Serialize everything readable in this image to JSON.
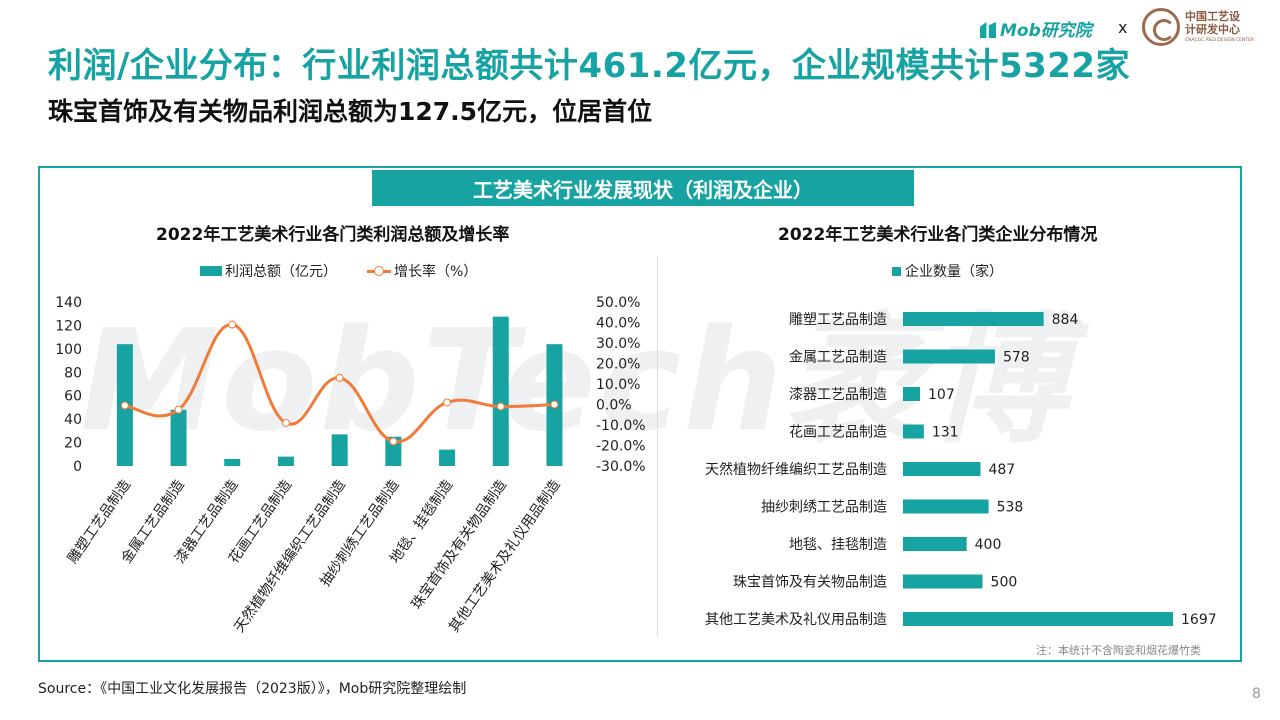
{
  "page": {
    "title": "利润/企业分布：行业利润总额共计461.2亿元，企业规模共计5322家",
    "subtitle": "珠宝首饰及有关物品利润总额为127.5亿元，位居首位",
    "panel_header": "工艺美术行业发展现状（利润及企业）",
    "note": "注：本统计不含陶瓷和烟花爆竹类",
    "source": "Source：《中国工业文化发展报告（2023版）》，Mob研究院整理绘制",
    "page_number": "8",
    "watermark": "MobTech袤博"
  },
  "logo": {
    "mob_text": "Mob研究院",
    "separator": "x",
    "partner_cn": "中国工艺设计研发中心",
    "partner_en": "CNACGC R&D DESIGN CENTER"
  },
  "colors": {
    "accent": "#18a3a3",
    "line": "#f07c3c"
  },
  "chart_data": [
    {
      "type": "bar+line",
      "title": "2022年工艺美术行业各门类利润总额及增长率",
      "categories": [
        "雕塑工艺品制造",
        "金属工艺品制造",
        "漆器工艺品制造",
        "花画工艺品制造",
        "天然植物纤维编织工艺品制造",
        "抽纱刺绣工艺品制造",
        "地毯、挂毯制造",
        "珠宝首饰及有关物品制造",
        "其他工艺美术及礼仪用品制造"
      ],
      "series": [
        {
          "name": "利润总额（亿元）",
          "kind": "bar",
          "axis": "left",
          "values": [
            104,
            48,
            6,
            8,
            27,
            25,
            14,
            127.5,
            104
          ]
        },
        {
          "name": "增长率（%）",
          "kind": "line",
          "axis": "right",
          "values": [
            -0.5,
            -2.5,
            39,
            -9,
            13,
            -18,
            1,
            -1,
            0
          ]
        }
      ],
      "ylim_left": [
        0,
        140
      ],
      "yticks_left": [
        "0",
        "20",
        "40",
        "60",
        "80",
        "100",
        "120",
        "140"
      ],
      "ylim_right": [
        -30,
        50
      ],
      "yticks_right": [
        "-30.0%",
        "-20.0%",
        "-10.0%",
        "0.0%",
        "10.0%",
        "20.0%",
        "30.0%",
        "40.0%",
        "50.0%"
      ],
      "legend": "top",
      "grid": false
    },
    {
      "type": "bar",
      "orientation": "horizontal",
      "title": "2022年工艺美术行业各门类企业分布情况",
      "categories": [
        "雕塑工艺品制造",
        "金属工艺品制造",
        "漆器工艺品制造",
        "花画工艺品制造",
        "天然植物纤维编织工艺品制造",
        "抽纱刺绣工艺品制造",
        "地毯、挂毯制造",
        "珠宝首饰及有关物品制造",
        "其他工艺美术及礼仪用品制造"
      ],
      "series": [
        {
          "name": "企业数量（家）",
          "values": [
            884,
            578,
            107,
            131,
            487,
            538,
            400,
            500,
            1697
          ]
        }
      ],
      "legend": "top",
      "grid": false
    }
  ]
}
